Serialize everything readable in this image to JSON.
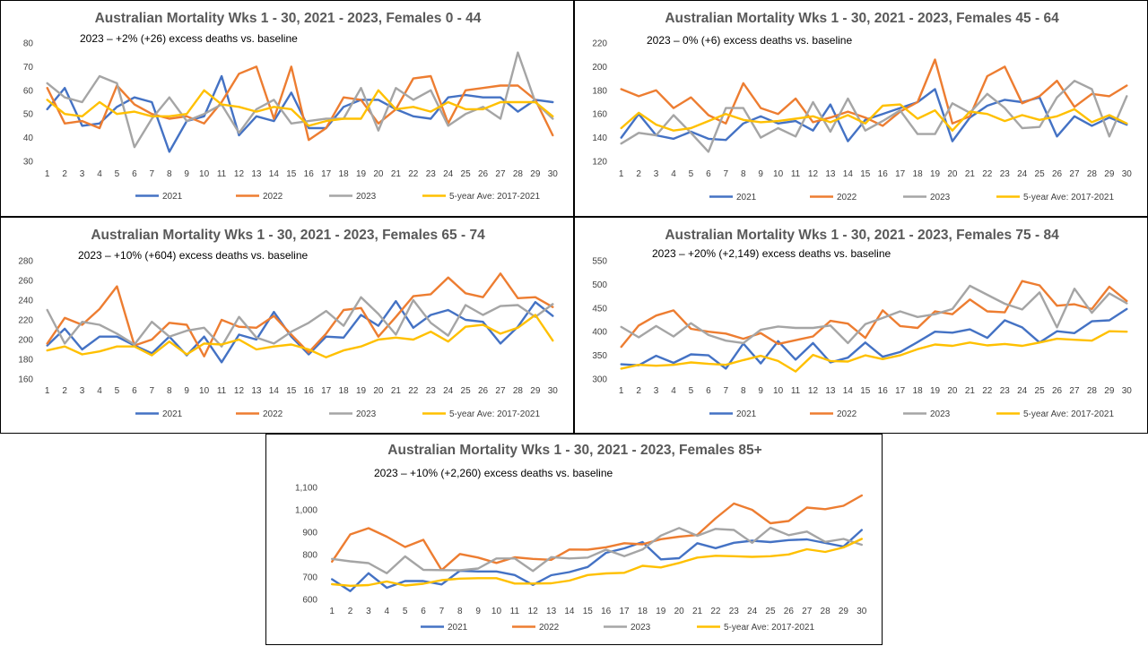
{
  "series_colors": {
    "2021": "#4472c4",
    "2022": "#ed7d31",
    "2023": "#a5a5a5",
    "avg": "#ffc000"
  },
  "chart_data": [
    {
      "type": "line",
      "title": "Australian Mortality Wks 1 - 30, 2021 - 2023, Females 0 - 44",
      "subtitle": "2023 – +2% (+26) excess deaths vs. baseline",
      "x": [
        1,
        2,
        3,
        4,
        5,
        6,
        7,
        8,
        9,
        10,
        11,
        12,
        13,
        14,
        15,
        16,
        17,
        18,
        19,
        20,
        21,
        22,
        23,
        24,
        25,
        26,
        27,
        28,
        29,
        30
      ],
      "ylim": [
        30,
        80
      ],
      "yticks": [
        30,
        40,
        50,
        60,
        70,
        80
      ],
      "series": [
        {
          "name": "2021",
          "values": [
            52,
            61,
            45,
            46,
            53,
            57,
            55,
            34,
            47,
            49,
            66,
            41,
            49,
            47,
            59,
            44,
            44,
            53,
            56,
            56,
            52,
            49,
            48,
            57,
            58,
            57,
            57,
            51,
            56,
            55
          ]
        },
        {
          "name": "2022",
          "values": [
            61,
            46,
            47,
            44,
            62,
            54,
            50,
            48,
            49,
            46,
            55,
            67,
            70,
            48,
            70,
            39,
            44,
            57,
            56,
            46,
            52,
            65,
            66,
            46,
            60,
            61,
            62,
            62,
            56,
            41
          ]
        },
        {
          "name": "2023",
          "values": [
            63,
            57,
            55,
            66,
            63,
            36,
            48,
            57,
            47,
            50,
            54,
            42,
            52,
            56,
            46,
            47,
            48,
            48,
            61,
            43,
            61,
            56,
            60,
            45,
            50,
            53,
            48,
            76,
            55,
            48
          ]
        },
        {
          "name": "5-year Ave: 2017-2021",
          "values": [
            56,
            50,
            49,
            55,
            50,
            51,
            49,
            49,
            50,
            60,
            54,
            53,
            51,
            53,
            52,
            45,
            47,
            48,
            48,
            60,
            52,
            53,
            51,
            55,
            52,
            52,
            55,
            55,
            55,
            49
          ]
        }
      ]
    },
    {
      "type": "line",
      "title": "Australian Mortality Wks 1 - 30, 2021 - 2023, Females 45 - 64",
      "subtitle": "2023 – 0% (+6) excess deaths vs. baseline",
      "x": [
        1,
        2,
        3,
        4,
        5,
        6,
        7,
        8,
        9,
        10,
        11,
        12,
        13,
        14,
        15,
        16,
        17,
        18,
        19,
        20,
        21,
        22,
        23,
        24,
        25,
        26,
        27,
        28,
        29,
        30
      ],
      "ylim": [
        120,
        220
      ],
      "yticks": [
        120,
        140,
        160,
        180,
        200,
        220
      ],
      "series": [
        {
          "name": "2021",
          "values": [
            140,
            160,
            142,
            139,
            145,
            139,
            138,
            152,
            158,
            152,
            154,
            146,
            168,
            137,
            155,
            160,
            165,
            170,
            181,
            137,
            157,
            167,
            172,
            170,
            174,
            141,
            158,
            150,
            157,
            151
          ]
        },
        {
          "name": "2022",
          "values": [
            181,
            175,
            180,
            165,
            174,
            159,
            152,
            186,
            165,
            160,
            173,
            153,
            157,
            162,
            157,
            150,
            162,
            170,
            206,
            152,
            158,
            192,
            200,
            169,
            175,
            188,
            166,
            177,
            175,
            184
          ]
        },
        {
          "name": "2023",
          "values": [
            135,
            144,
            142,
            159,
            144,
            128,
            165,
            165,
            140,
            148,
            141,
            170,
            145,
            173,
            146,
            154,
            163,
            143,
            143,
            169,
            161,
            177,
            165,
            148,
            149,
            174,
            188,
            181,
            141,
            175
          ]
        },
        {
          "name": "5-year Ave: 2017-2021",
          "values": [
            148,
            161,
            151,
            146,
            148,
            154,
            160,
            155,
            153,
            154,
            156,
            158,
            153,
            159,
            152,
            167,
            168,
            156,
            163,
            146,
            162,
            160,
            154,
            159,
            155,
            158,
            164,
            153,
            159,
            152
          ]
        }
      ]
    },
    {
      "type": "line",
      "title": "Australian Mortality Wks 1 - 30, 2021 - 2023, Females 65 - 74",
      "subtitle": "2023 – +10% (+604) excess deaths vs. baseline",
      "x": [
        1,
        2,
        3,
        4,
        5,
        6,
        7,
        8,
        9,
        10,
        11,
        12,
        13,
        14,
        15,
        16,
        17,
        18,
        19,
        20,
        21,
        22,
        23,
        24,
        25,
        26,
        27,
        28,
        29,
        30
      ],
      "ylim": [
        160,
        280
      ],
      "yticks": [
        160,
        180,
        200,
        220,
        240,
        260,
        280
      ],
      "series": [
        {
          "name": "2021",
          "values": [
            194,
            211,
            190,
            203,
            203,
            194,
            186,
            203,
            184,
            203,
            177,
            205,
            200,
            228,
            203,
            185,
            203,
            202,
            225,
            214,
            239,
            212,
            225,
            230,
            220,
            218,
            196,
            213,
            238,
            224
          ]
        },
        {
          "name": "2022",
          "values": [
            196,
            222,
            215,
            231,
            254,
            194,
            200,
            217,
            215,
            183,
            220,
            213,
            212,
            224,
            205,
            187,
            206,
            230,
            232,
            203,
            223,
            244,
            246,
            263,
            247,
            243,
            267,
            242,
            243,
            233
          ]
        },
        {
          "name": "2023",
          "values": [
            230,
            196,
            218,
            215,
            206,
            195,
            218,
            203,
            209,
            212,
            193,
            223,
            202,
            196,
            208,
            217,
            229,
            214,
            243,
            226,
            205,
            240,
            217,
            204,
            235,
            225,
            234,
            235,
            223,
            236
          ]
        },
        {
          "name": "5-year Ave: 2017-2021",
          "values": [
            189,
            193,
            185,
            188,
            193,
            193,
            184,
            198,
            185,
            196,
            195,
            200,
            190,
            193,
            195,
            190,
            182,
            189,
            193,
            200,
            202,
            200,
            208,
            198,
            213,
            215,
            206,
            212,
            225,
            199
          ]
        }
      ]
    },
    {
      "type": "line",
      "title": "Australian Mortality Wks 1 - 30, 2021 - 2023, Females 75 - 84",
      "subtitle": "2023 – +20% (+2,149) excess deaths vs. baseline",
      "x": [
        1,
        2,
        3,
        4,
        5,
        6,
        7,
        8,
        9,
        10,
        11,
        12,
        13,
        14,
        15,
        16,
        17,
        18,
        19,
        20,
        21,
        22,
        23,
        24,
        25,
        26,
        27,
        28,
        29,
        30
      ],
      "ylim": [
        300,
        550
      ],
      "yticks": [
        300,
        350,
        400,
        450,
        500,
        550
      ],
      "series": [
        {
          "name": "2021",
          "values": [
            331,
            329,
            349,
            334,
            352,
            350,
            322,
            375,
            333,
            380,
            341,
            376,
            335,
            345,
            377,
            347,
            357,
            378,
            400,
            398,
            405,
            387,
            424,
            409,
            377,
            401,
            397,
            422,
            424,
            448
          ]
        },
        {
          "name": "2022",
          "values": [
            368,
            413,
            434,
            445,
            406,
            400,
            396,
            385,
            397,
            374,
            382,
            390,
            423,
            417,
            387,
            445,
            412,
            408,
            443,
            437,
            468,
            443,
            441,
            507,
            498,
            455,
            458,
            448,
            495,
            465
          ]
        },
        {
          "name": "2023",
          "values": [
            410,
            388,
            412,
            390,
            418,
            393,
            381,
            376,
            404,
            411,
            408,
            408,
            413,
            376,
            416,
            429,
            443,
            431,
            437,
            448,
            497,
            478,
            459,
            447,
            483,
            409,
            491,
            440,
            481,
            460
          ]
        },
        {
          "name": "5-year Ave: 2017-2021",
          "values": [
            322,
            330,
            328,
            330,
            335,
            332,
            330,
            340,
            349,
            338,
            316,
            351,
            338,
            337,
            350,
            342,
            350,
            363,
            373,
            370,
            377,
            371,
            374,
            370,
            377,
            385,
            383,
            381,
            401,
            400
          ]
        }
      ]
    },
    {
      "type": "line",
      "title": "Australian Mortality Wks 1 - 30, 2021 - 2023, Females 85+",
      "subtitle": "2023 – +10% (+2,260) excess deaths vs. baseline",
      "x": [
        1,
        2,
        3,
        4,
        5,
        6,
        7,
        8,
        9,
        10,
        11,
        12,
        13,
        14,
        15,
        16,
        17,
        18,
        19,
        20,
        21,
        22,
        23,
        24,
        25,
        26,
        27,
        28,
        29,
        30
      ],
      "ylim": [
        600,
        1100
      ],
      "yticks": [
        600,
        700,
        800,
        900,
        1000,
        1100
      ],
      "series": [
        {
          "name": "2021",
          "values": [
            690,
            637,
            717,
            652,
            682,
            682,
            667,
            728,
            725,
            725,
            709,
            665,
            708,
            722,
            745,
            808,
            828,
            856,
            779,
            784,
            851,
            829,
            853,
            862,
            856,
            865,
            868,
            852,
            836,
            910
          ]
        },
        {
          "name": "2022",
          "values": [
            769,
            890,
            918,
            880,
            834,
            866,
            731,
            803,
            787,
            763,
            788,
            781,
            777,
            823,
            822,
            833,
            851,
            846,
            869,
            880,
            888,
            962,
            1028,
            1000,
            940,
            950,
            1010,
            1003,
            1018,
            1064
          ]
        },
        {
          "name": "2023",
          "values": [
            781,
            770,
            762,
            717,
            792,
            732,
            731,
            730,
            738,
            783,
            783,
            727,
            789,
            783,
            787,
            822,
            793,
            823,
            885,
            919,
            884,
            915,
            910,
            853,
            920,
            887,
            903,
            857,
            870,
            844
          ]
        },
        {
          "name": "5-year Ave: 2017-2021",
          "values": [
            668,
            661,
            664,
            680,
            662,
            670,
            686,
            693,
            695,
            695,
            671,
            671,
            672,
            684,
            709,
            716,
            719,
            750,
            743,
            763,
            787,
            795,
            793,
            790,
            793,
            801,
            824,
            812,
            832,
            870
          ]
        }
      ]
    }
  ]
}
